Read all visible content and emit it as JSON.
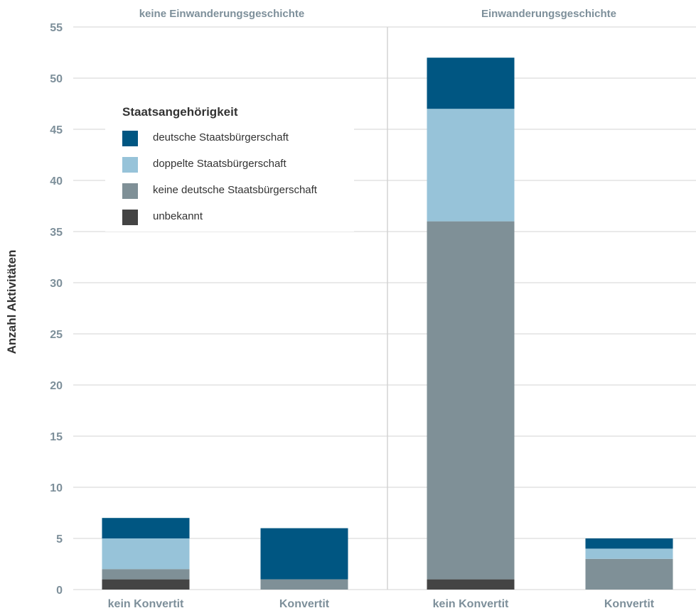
{
  "chart_data": {
    "type": "bar",
    "stacked": true,
    "ylabel": "Anzahl Aktivitäten",
    "ylim": [
      0,
      55
    ],
    "yticks": [
      0,
      5,
      10,
      15,
      20,
      25,
      30,
      35,
      40,
      45,
      50,
      55
    ],
    "grid": true,
    "panels": [
      "keine Einwanderungsgeschichte",
      "Einwanderungsgeschichte"
    ],
    "categories": [
      "kein Konvertit",
      "Konvertit",
      "kein Konvertit",
      "Konvertit"
    ],
    "legend": {
      "title": "Staatsangehörigkeit",
      "placement": "top-left"
    },
    "series": [
      {
        "name": "unbekannt",
        "color": "#444444",
        "values": [
          1,
          0,
          1,
          0
        ]
      },
      {
        "name": "keine deutsche Staatsbürgerschaft",
        "color": "#7f9097",
        "values": [
          1,
          1,
          35,
          3
        ]
      },
      {
        "name": "doppelte Staatsbürgerschaft",
        "color": "#97c3d9",
        "values": [
          3,
          0,
          11,
          1
        ]
      },
      {
        "name": "deutsche Staatsbürgerschaft",
        "color": "#005682",
        "values": [
          2,
          5,
          5,
          1
        ]
      }
    ]
  }
}
